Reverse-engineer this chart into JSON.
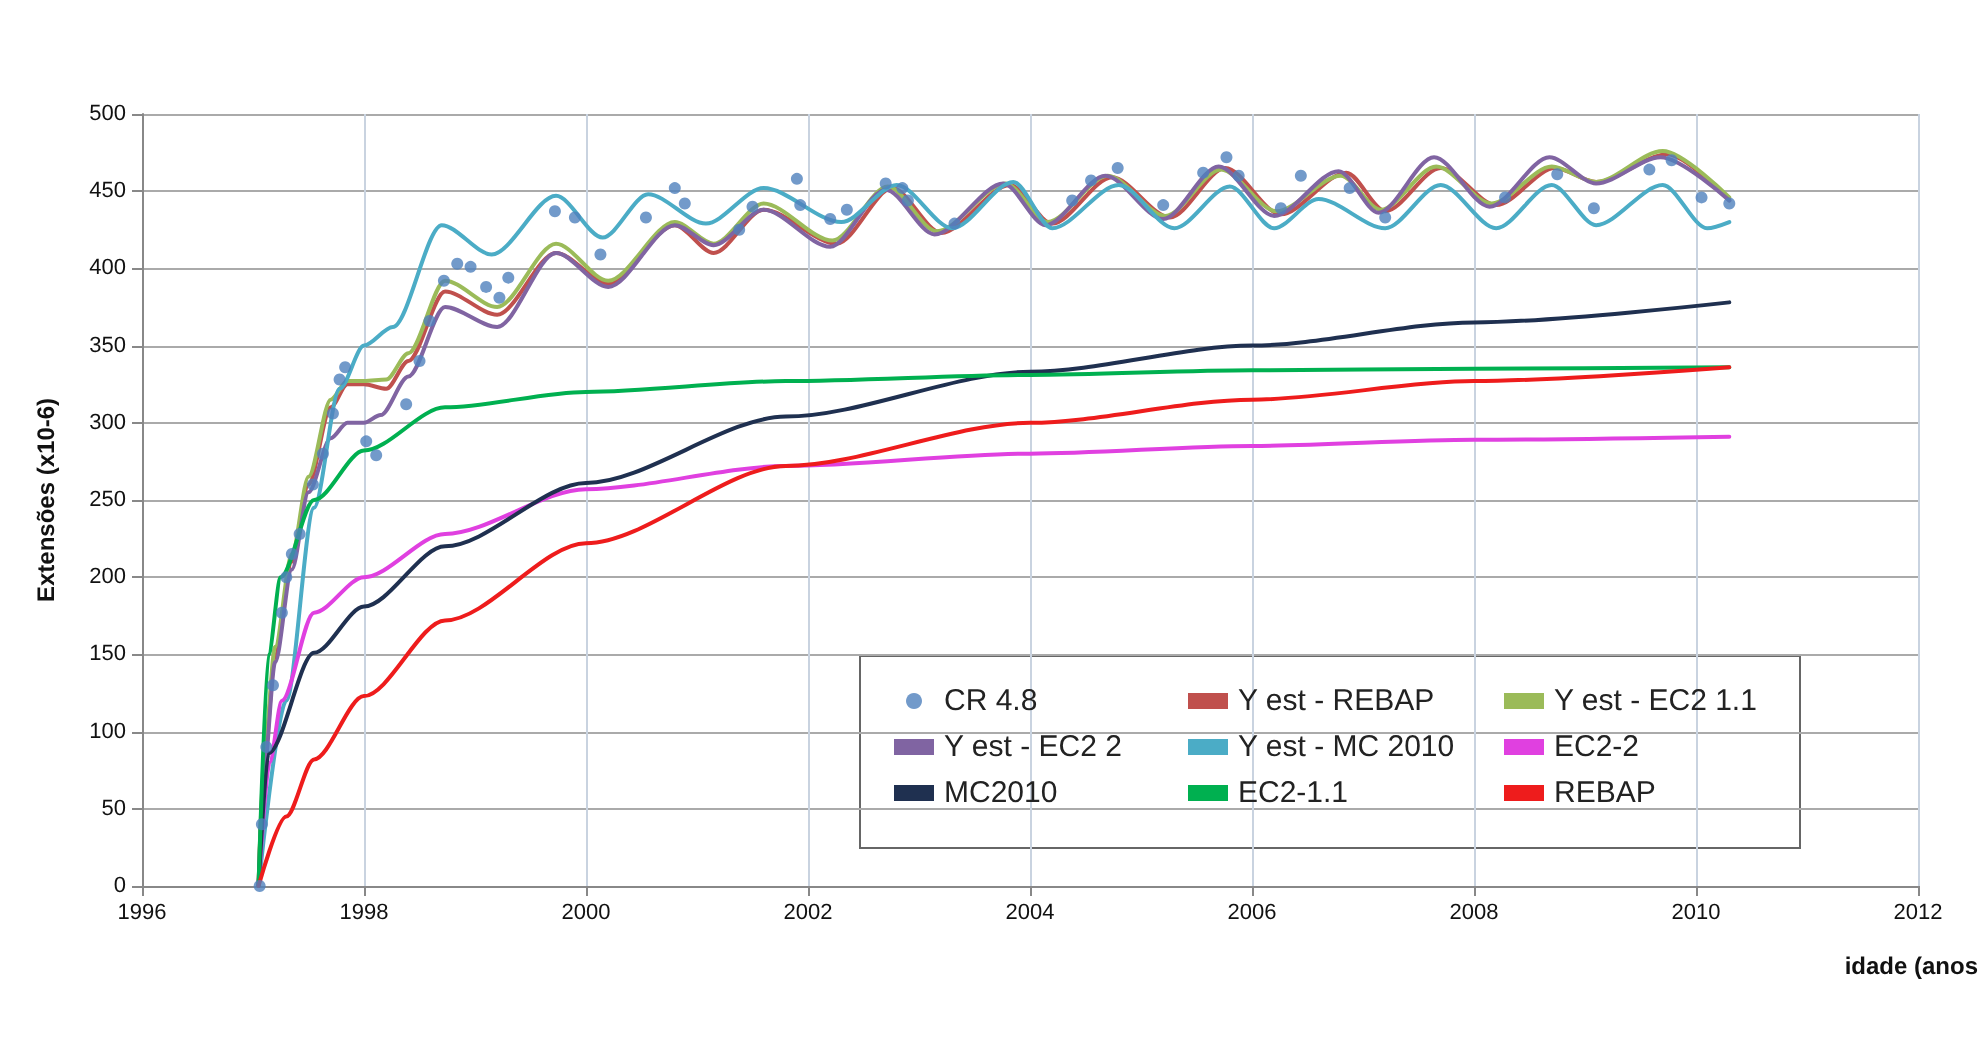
{
  "chart_data": {
    "type": "line",
    "xlabel": "idade (anos",
    "ylabel": "Extensões (x10-6)",
    "xlim": [
      1996,
      2012
    ],
    "xticks": [
      1996,
      1998,
      2000,
      2002,
      2004,
      2006,
      2008,
      2010,
      2012
    ],
    "ylim": [
      0,
      500
    ],
    "yticks": [
      0,
      50,
      100,
      150,
      200,
      250,
      300,
      350,
      400,
      450,
      500
    ],
    "grid": true,
    "legend": "bottom right",
    "marker": "none",
    "line_style": "solid",
    "series": [
      {
        "name": "CR 4.8",
        "type": "scatter",
        "marker": "circle",
        "color": "#4f81bd",
        "x": [
          1997.06,
          1997.08,
          1997.12,
          1997.18,
          1997.26,
          1997.3,
          1997.35,
          1997.42,
          1997.54,
          1997.63,
          1997.72,
          1997.78,
          1997.83,
          1998.02,
          1998.11,
          1998.38,
          1998.5,
          1998.59,
          1998.72,
          1998.84,
          1998.96,
          1999.1,
          1999.22,
          1999.3,
          1999.72,
          1999.9,
          2000.13,
          2000.54,
          2000.8,
          2000.89,
          2001.38,
          2001.5,
          2001.9,
          2001.93,
          2002.2,
          2002.35,
          2002.7,
          2002.85,
          2002.9,
          2003.32,
          2004.38,
          2004.55,
          2004.79,
          2005.2,
          2005.56,
          2005.77,
          2005.88,
          2006.26,
          2006.44,
          2006.88,
          2007.2,
          2008.28,
          2008.75,
          2009.08,
          2009.58,
          2009.78,
          2010.05,
          2010.3
        ],
        "values": [
          0,
          40,
          90,
          130,
          177,
          200,
          215,
          228,
          260,
          280,
          306,
          328,
          336,
          288,
          279,
          312,
          340,
          366,
          392,
          403,
          401,
          388,
          381,
          394,
          437,
          433,
          409,
          433,
          452,
          442,
          425,
          440,
          458,
          441,
          432,
          438,
          455,
          452,
          444,
          429,
          444,
          457,
          465,
          441,
          462,
          472,
          460,
          439,
          460,
          452,
          433,
          446,
          461,
          439,
          464,
          470,
          446,
          442
        ]
      },
      {
        "name": "Y est - REBAP",
        "color": "#c0504d",
        "x": [
          1997.05,
          1997.1,
          1997.2,
          1997.35,
          1997.5,
          1997.7,
          1997.85,
          1998.0,
          1998.2,
          1998.4,
          1998.73,
          1999.2,
          1999.73,
          2000.2,
          2000.8,
          2001.15,
          2001.6,
          2002.26,
          2002.76,
          2003.2,
          2003.82,
          2004.2,
          2004.74,
          2005.26,
          2005.76,
          2006.26,
          2006.85,
          2007.2,
          2007.7,
          2008.2,
          2008.73,
          2009.1,
          2009.74,
          2010.3
        ],
        "values": [
          0,
          80,
          150,
          210,
          260,
          310,
          325,
          325,
          322,
          340,
          385,
          370,
          410,
          390,
          428,
          410,
          438,
          416,
          452,
          423,
          454,
          429,
          459,
          433,
          465,
          435,
          462,
          437,
          465,
          441,
          465,
          456,
          474,
          444
        ]
      },
      {
        "name": "Y est - EC2 1.1",
        "color": "#9bbb59",
        "x": [
          1997.05,
          1997.1,
          1997.2,
          1997.35,
          1997.5,
          1997.7,
          1997.85,
          1998.0,
          1998.2,
          1998.4,
          1998.73,
          1999.2,
          1999.73,
          2000.2,
          2000.8,
          2001.15,
          2001.6,
          2002.22,
          2002.72,
          2003.16,
          2003.78,
          2004.16,
          2004.7,
          2005.22,
          2005.72,
          2006.22,
          2006.8,
          2007.16,
          2007.66,
          2008.16,
          2008.7,
          2009.1,
          2009.7,
          2010.3
        ],
        "values": [
          0,
          85,
          155,
          215,
          265,
          315,
          327,
          327,
          328,
          345,
          392,
          375,
          416,
          392,
          430,
          416,
          442,
          418,
          453,
          424,
          455,
          430,
          460,
          434,
          464,
          437,
          460,
          438,
          466,
          442,
          466,
          456,
          476,
          446
        ]
      },
      {
        "name": "Y est - EC2 2",
        "color": "#8064a2",
        "x": [
          1997.05,
          1997.1,
          1997.2,
          1997.35,
          1997.5,
          1997.7,
          1997.85,
          1998.0,
          1998.15,
          1998.4,
          1998.73,
          1999.2,
          1999.73,
          2000.2,
          2000.8,
          2001.15,
          2001.6,
          2002.2,
          2002.7,
          2003.14,
          2003.76,
          2004.14,
          2004.68,
          2005.2,
          2005.7,
          2006.2,
          2006.78,
          2007.14,
          2007.64,
          2008.14,
          2008.68,
          2009.1,
          2009.68,
          2010.3
        ],
        "values": [
          0,
          75,
          145,
          205,
          255,
          290,
          300,
          300,
          305,
          330,
          375,
          362,
          410,
          388,
          428,
          415,
          438,
          414,
          451,
          422,
          455,
          428,
          460,
          432,
          466,
          434,
          463,
          436,
          472,
          440,
          472,
          455,
          472,
          444
        ]
      },
      {
        "name": "Y est - MC 2010",
        "color": "#4bacc6",
        "x": [
          1997.05,
          1997.3,
          1997.55,
          1997.78,
          1998.0,
          1998.26,
          1998.7,
          1999.15,
          1999.73,
          2000.15,
          2000.56,
          2001.08,
          2001.6,
          2002.3,
          2002.8,
          2003.3,
          2003.85,
          2004.2,
          2004.8,
          2005.3,
          2005.8,
          2006.2,
          2006.6,
          2007.2,
          2007.7,
          2008.2,
          2008.7,
          2009.1,
          2009.7,
          2010.1,
          2010.3
        ],
        "values": [
          0,
          120,
          245,
          322,
          350,
          362,
          428,
          409,
          447,
          420,
          448,
          429,
          452,
          430,
          454,
          426,
          456,
          426,
          454,
          426,
          453,
          426,
          445,
          426,
          454,
          426,
          454,
          428,
          454,
          426,
          430
        ]
      },
      {
        "name": "EC2-2",
        "color": "#e040e0",
        "x": [
          1997.05,
          1997.15,
          1997.26,
          1997.55,
          1998.0,
          1998.73,
          2000.0,
          2001.8,
          2004.0,
          2006.0,
          2008.0,
          2010.3
        ],
        "values": [
          0,
          80,
          120,
          177,
          200,
          228,
          257,
          272,
          280,
          285,
          289,
          291
        ]
      },
      {
        "name": "MC2010",
        "color": "#1f3050",
        "x": [
          1997.05,
          1997.14,
          1997.55,
          1998.0,
          1998.73,
          2000.0,
          2001.8,
          2004.0,
          2006.0,
          2008.0,
          2010.3
        ],
        "values": [
          0,
          86,
          151,
          181,
          220,
          261,
          304,
          333,
          350,
          365,
          378
        ]
      },
      {
        "name": "EC2-1.1",
        "color": "#00b050",
        "x": [
          1997.05,
          1997.14,
          1997.25,
          1997.55,
          1998.0,
          1998.73,
          2000.0,
          2001.8,
          2004.0,
          2006.0,
          2008.0,
          2010.3
        ],
        "values": [
          0,
          150,
          200,
          250,
          282,
          310,
          320,
          327,
          331,
          334,
          335,
          336
        ]
      },
      {
        "name": "REBAP",
        "color": "#ee1c1c",
        "x": [
          1997.05,
          1997.3,
          1997.55,
          1998.0,
          1998.73,
          2000.0,
          2001.8,
          2004.0,
          2006.0,
          2008.0,
          2010.3
        ],
        "values": [
          0,
          45,
          82,
          123,
          172,
          222,
          272,
          300,
          315,
          327,
          336
        ]
      }
    ]
  }
}
